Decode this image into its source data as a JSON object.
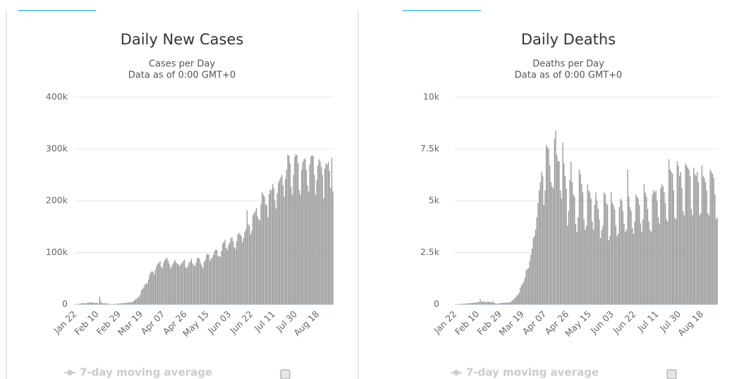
{
  "chart_data": [
    {
      "type": "bar",
      "title": "Daily New Cases",
      "subtitle": [
        "Cases per Day",
        "Data as of 0:00 GMT+0"
      ],
      "legend_items": [
        "7-day moving average"
      ],
      "color": "#999999",
      "grid": true,
      "ylim": [
        0,
        400000
      ],
      "yticks": [
        0,
        {
          "value": 100000,
          "label": "100k"
        },
        {
          "value": 200000,
          "label": "200k"
        },
        {
          "value": 300000,
          "label": "300k"
        },
        {
          "value": 400000,
          "label": "400k"
        }
      ],
      "categories": [
        "Jan 22",
        null,
        null,
        null,
        null,
        null,
        null,
        null,
        null,
        null,
        null,
        null,
        null,
        null,
        null,
        null,
        null,
        null,
        null,
        "Feb 10",
        null,
        null,
        null,
        null,
        null,
        null,
        null,
        null,
        null,
        null,
        null,
        null,
        null,
        null,
        null,
        null,
        null,
        null,
        "Feb 29",
        null,
        null,
        null,
        null,
        null,
        null,
        null,
        null,
        null,
        null,
        null,
        null,
        null,
        null,
        null,
        null,
        null,
        null,
        "Mar 19",
        null,
        null,
        null,
        null,
        null,
        null,
        null,
        null,
        null,
        null,
        null,
        null,
        null,
        null,
        null,
        null,
        null,
        null,
        "Apr 07",
        null,
        null,
        null,
        null,
        null,
        null,
        null,
        null,
        null,
        null,
        null,
        null,
        null,
        null,
        null,
        null,
        null,
        null,
        "Apr 26",
        null,
        null,
        null,
        null,
        null,
        null,
        null,
        null,
        null,
        null,
        null,
        null,
        null,
        null,
        null,
        null,
        null,
        null,
        "May 15",
        null,
        null,
        null,
        null,
        null,
        null,
        null,
        null,
        null,
        null,
        null,
        null,
        null,
        null,
        null,
        null,
        null,
        null,
        "Jun 03",
        null,
        null,
        null,
        null,
        null,
        null,
        null,
        null,
        null,
        null,
        null,
        null,
        null,
        null,
        null,
        null,
        null,
        null,
        "Jun 22",
        null,
        null,
        null,
        null,
        null,
        null,
        null,
        null,
        null,
        null,
        null,
        null,
        null,
        null,
        null,
        null,
        null,
        null,
        "Jul 11",
        null,
        null,
        null,
        null,
        null,
        null,
        null,
        null,
        null,
        null,
        null,
        null,
        null,
        null,
        null,
        null,
        null,
        null,
        "Jul 30",
        null,
        null,
        null,
        null,
        null,
        null,
        null,
        null,
        null,
        null,
        null,
        null,
        null,
        null,
        null,
        null,
        null,
        null,
        "Aug 18",
        null,
        null,
        null,
        null,
        null,
        null,
        null,
        null,
        null,
        null,
        null,
        null,
        null
      ],
      "values": [
        100,
        200,
        600,
        800,
        1300,
        1900,
        2100,
        2600,
        2000,
        2100,
        2600,
        3200,
        3900,
        3700,
        3700,
        3200,
        2800,
        2600,
        3100,
        2500,
        2000,
        15000,
        6500,
        2600,
        2100,
        2000,
        1900,
        1800,
        1700,
        600,
        900,
        300,
        600,
        500,
        600,
        800,
        1100,
        1300,
        1800,
        1900,
        2000,
        2500,
        2200,
        2500,
        2700,
        3800,
        4000,
        3600,
        4000,
        4500,
        6500,
        7500,
        10000,
        11000,
        13000,
        15000,
        19000,
        27000,
        30000,
        33000,
        38000,
        41000,
        40000,
        48000,
        57000,
        62000,
        64000,
        63000,
        58000,
        67000,
        74000,
        78000,
        80000,
        83000,
        73000,
        70000,
        80000,
        85000,
        88000,
        90000,
        84000,
        78000,
        70000,
        73000,
        78000,
        82000,
        86000,
        81000,
        78000,
        77000,
        74000,
        78000,
        80000,
        84000,
        86000,
        72000,
        70000,
        74000,
        80000,
        83000,
        88000,
        79000,
        76000,
        74000,
        80000,
        89000,
        90000,
        88000,
        80000,
        75000,
        70000,
        82000,
        86000,
        95000,
        98000,
        96000,
        84000,
        88000,
        91000,
        96000,
        103000,
        106000,
        105000,
        92000,
        94000,
        92000,
        103000,
        118000,
        120000,
        125000,
        109000,
        105000,
        115000,
        119000,
        128000,
        130000,
        122000,
        110000,
        107000,
        122000,
        135000,
        138000,
        135000,
        132000,
        120000,
        128000,
        140000,
        145000,
        182000,
        155000,
        152000,
        135000,
        142000,
        172000,
        176000,
        180000,
        186000,
        170000,
        165000,
        162000,
        193000,
        216000,
        212000,
        208000,
        193000,
        192000,
        168000,
        213000,
        222000,
        220000,
        232000,
        225000,
        200000,
        185000,
        215000,
        235000,
        240000,
        245000,
        250000,
        230000,
        208000,
        242000,
        260000,
        289000,
        287000,
        272000,
        227000,
        212000,
        250000,
        285000,
        290000,
        288000,
        272000,
        220000,
        212000,
        260000,
        275000,
        280000,
        282000,
        260000,
        230000,
        218000,
        270000,
        286000,
        288000,
        286000,
        250000,
        212000,
        240000,
        268000,
        280000,
        276000,
        265000,
        250000,
        205000,
        262000,
        272000,
        270000,
        275000,
        258000,
        225000,
        283000,
        218000
      ]
    },
    {
      "type": "bar",
      "title": "Daily Deaths",
      "subtitle": [
        "Deaths per Day",
        "Data as of 0:00 GMT+0"
      ],
      "legend_items": [
        "7-day moving average"
      ],
      "color": "#999999",
      "grid": true,
      "ylim": [
        0,
        10000
      ],
      "yticks": [
        0,
        {
          "value": 2500,
          "label": "2.5k"
        },
        {
          "value": 5000,
          "label": "5k"
        },
        {
          "value": 7500,
          "label": "7.5k"
        },
        {
          "value": 10000,
          "label": "10k"
        }
      ],
      "categories": [
        "Jan 22",
        null,
        null,
        null,
        null,
        null,
        null,
        null,
        null,
        null,
        null,
        null,
        null,
        null,
        null,
        null,
        null,
        null,
        null,
        "Feb 10",
        null,
        null,
        null,
        null,
        null,
        null,
        null,
        null,
        null,
        null,
        null,
        null,
        null,
        null,
        null,
        null,
        null,
        null,
        "Feb 29",
        null,
        null,
        null,
        null,
        null,
        null,
        null,
        null,
        null,
        null,
        null,
        null,
        null,
        null,
        null,
        null,
        null,
        null,
        "Mar 19",
        null,
        null,
        null,
        null,
        null,
        null,
        null,
        null,
        null,
        null,
        null,
        null,
        null,
        null,
        null,
        null,
        null,
        null,
        "Apr 07",
        null,
        null,
        null,
        null,
        null,
        null,
        null,
        null,
        null,
        null,
        null,
        null,
        null,
        null,
        null,
        null,
        null,
        null,
        "Apr 26",
        null,
        null,
        null,
        null,
        null,
        null,
        null,
        null,
        null,
        null,
        null,
        null,
        null,
        null,
        null,
        null,
        null,
        null,
        "May 15",
        null,
        null,
        null,
        null,
        null,
        null,
        null,
        null,
        null,
        null,
        null,
        null,
        null,
        null,
        null,
        null,
        null,
        null,
        "Jun 03",
        null,
        null,
        null,
        null,
        null,
        null,
        null,
        null,
        null,
        null,
        null,
        null,
        null,
        null,
        null,
        null,
        null,
        null,
        "Jun 22",
        null,
        null,
        null,
        null,
        null,
        null,
        null,
        null,
        null,
        null,
        null,
        null,
        null,
        null,
        null,
        null,
        null,
        null,
        "Jul 11",
        null,
        null,
        null,
        null,
        null,
        null,
        null,
        null,
        null,
        null,
        null,
        null,
        null,
        null,
        null,
        null,
        null,
        null,
        "Jul 30",
        null,
        null,
        null,
        null,
        null,
        null,
        null,
        null,
        null,
        null,
        null,
        null,
        null,
        null,
        null,
        null,
        null,
        null,
        "Aug 18",
        null,
        null,
        null,
        null,
        null,
        null,
        null,
        null,
        null,
        null,
        null,
        null,
        null
      ],
      "values": [
        0,
        2,
        8,
        16,
        15,
        24,
        26,
        26,
        38,
        43,
        46,
        45,
        57,
        64,
        65,
        73,
        73,
        86,
        89,
        97,
        108,
        254,
        121,
        143,
        142,
        105,
        98,
        139,
        112,
        118,
        109,
        97,
        150,
        71,
        52,
        29,
        44,
        37,
        58,
        67,
        70,
        78,
        75,
        81,
        82,
        88,
        99,
        110,
        190,
        210,
        280,
        350,
        420,
        470,
        560,
        780,
        920,
        1000,
        1100,
        1300,
        1650,
        1700,
        1750,
        2100,
        2400,
        2700,
        3200,
        3300,
        3600,
        4200,
        4900,
        5500,
        5900,
        6400,
        6200,
        4800,
        5500,
        7700,
        7600,
        7500,
        6700,
        5900,
        5700,
        5600,
        8000,
        8400,
        7200,
        6900,
        6900,
        5500,
        5100,
        7800,
        6800,
        6200,
        5600,
        3800,
        4500,
        6000,
        6900,
        5900,
        5300,
        5200,
        3900,
        3500,
        4200,
        6500,
        6300,
        5800,
        5400,
        4100,
        3600,
        3800,
        5800,
        5500,
        5400,
        5100,
        4000,
        3600,
        4800,
        5400,
        5000,
        4600,
        4100,
        3200,
        3600,
        3800,
        5400,
        5300,
        4900,
        4800,
        3100,
        3300,
        5400,
        4900,
        4800,
        4600,
        3800,
        3300,
        3400,
        4700,
        5100,
        5000,
        4500,
        3900,
        3500,
        3600,
        6500,
        5200,
        4700,
        4500,
        3700,
        3400,
        4000,
        5300,
        5200,
        5100,
        4800,
        3900,
        3500,
        4100,
        5800,
        5400,
        5200,
        4600,
        4000,
        3600,
        3500,
        5300,
        5500,
        5400,
        5500,
        5000,
        4200,
        3900,
        5600,
        5800,
        5700,
        5400,
        4900,
        4100,
        4000,
        7000,
        6500,
        6400,
        6300,
        5500,
        4200,
        4100,
        6900,
        6700,
        6200,
        6400,
        5600,
        4500,
        4300,
        6800,
        6700,
        6600,
        6500,
        6200,
        4600,
        4300,
        6600,
        6300,
        6200,
        6400,
        5900,
        4300,
        4400,
        6700,
        6200,
        6100,
        5900,
        5500,
        4400,
        4300,
        6500,
        6400,
        6300,
        6100,
        5300,
        4100,
        4200
      ]
    }
  ]
}
